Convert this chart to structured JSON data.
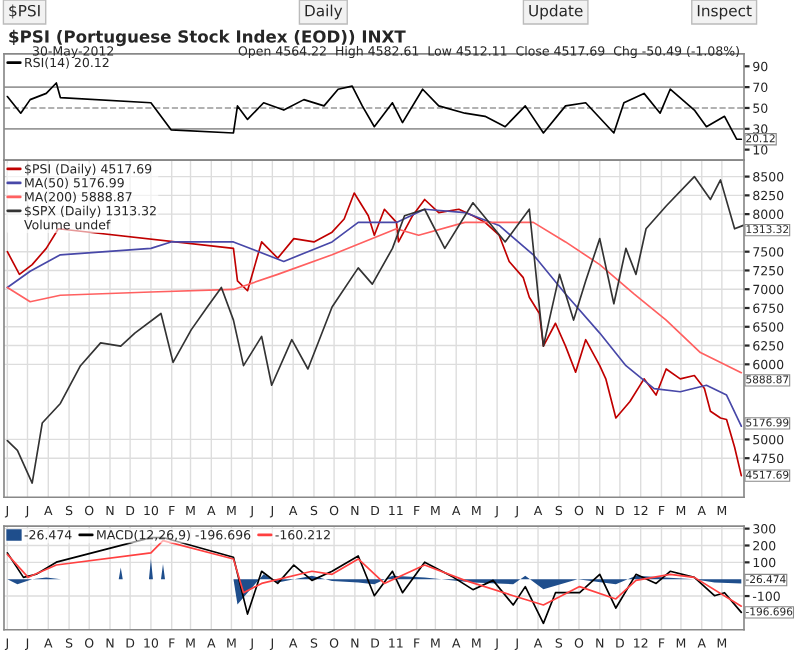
{
  "chart_data": [
    {
      "type": "line",
      "title": "$PSI (Portuguese Stock Index (EOD)) INXT",
      "subtitle": "30-May-2012",
      "annotations": [
        "$PSI",
        "Daily",
        "Update",
        "Inspect",
        "Open 4564.22  High 4582.61  Low 4512.11  Close 4517.69  Chg -50.49 (-1.08%)",
        {
          "text": "20.12",
          "x": "2012-05-30",
          "y": 20
        }
      ],
      "xlim": [
        "2009-05-27",
        "2012-06-03"
      ],
      "ylim": [
        0,
        102
      ],
      "yticks": [
        10,
        30,
        50,
        70,
        90
      ],
      "tick_labels": "y",
      "grid": "x",
      "legend": "top left",
      "ref_lines": [
        {
          "axis": "y",
          "value": 70,
          "color": "#999999",
          "line_style": "solid"
        },
        {
          "axis": "y",
          "value": 50,
          "color": "#999999",
          "line_style": "dashed"
        },
        {
          "axis": "y",
          "value": 30,
          "color": "#999999",
          "line_style": "solid"
        }
      ],
      "series": [
        {
          "name": "RSI(14) 20.12",
          "color": "#000000",
          "x": [
            "2009-06-01",
            "2009-06-21",
            "2009-07-05",
            "2009-07-29",
            "2009-08-13",
            "2009-08-19",
            "2010-01-01",
            "2010-01-31",
            "2010-05-04",
            "2010-05-10",
            "2010-05-25",
            "2010-06-18",
            "2010-07-18",
            "2010-08-17",
            "2010-09-16",
            "2010-10-07",
            "2010-10-28",
            "2010-11-12",
            "2010-11-30",
            "2010-12-27",
            "2011-01-11",
            "2011-02-10",
            "2011-03-06",
            "2011-04-14",
            "2011-05-14",
            "2011-06-13",
            "2011-07-13",
            "2011-08-09",
            "2011-09-11",
            "2011-10-11",
            "2011-11-22",
            "2011-12-07",
            "2012-01-06",
            "2012-01-30",
            "2012-02-14",
            "2012-03-21",
            "2012-04-08",
            "2012-05-05",
            "2012-05-23",
            "2012-05-30"
          ],
          "values": [
            61,
            45,
            58,
            64,
            74,
            60,
            55,
            29,
            26,
            52,
            39,
            55,
            48,
            58,
            52,
            68,
            71,
            52,
            32,
            55,
            36,
            68,
            52,
            45,
            42,
            32,
            52,
            26,
            52,
            55,
            26,
            55,
            64,
            45,
            68,
            48,
            32,
            42,
            20,
            20
          ]
        }
      ]
    },
    {
      "type": "line",
      "xlim": [
        "2009-05-27",
        "2012-06-03"
      ],
      "ylim": [
        4230,
        8720
      ],
      "yticks": [
        4750,
        5000,
        6000,
        6250,
        6500,
        6750,
        7000,
        7250,
        7500,
        8000,
        8250,
        8500
      ],
      "xticks": [
        {
          "value": "2009-06-01",
          "label": "J"
        },
        {
          "value": "2009-07-01",
          "label": "J"
        },
        {
          "value": "2009-08-01",
          "label": "A"
        },
        {
          "value": "2009-09-01",
          "label": "S"
        },
        {
          "value": "2009-10-01",
          "label": "O"
        },
        {
          "value": "2009-11-01",
          "label": "N"
        },
        {
          "value": "2009-12-01",
          "label": "D"
        },
        {
          "value": "2010-01-01",
          "label": "10"
        },
        {
          "value": "2010-02-01",
          "label": "F"
        },
        {
          "value": "2010-03-01",
          "label": "M"
        },
        {
          "value": "2010-04-01",
          "label": "A"
        },
        {
          "value": "2010-05-01",
          "label": "M"
        },
        {
          "value": "2010-06-01",
          "label": "J"
        },
        {
          "value": "2010-07-01",
          "label": "J"
        },
        {
          "value": "2010-08-01",
          "label": "A"
        },
        {
          "value": "2010-09-01",
          "label": "S"
        },
        {
          "value": "2010-10-01",
          "label": "O"
        },
        {
          "value": "2010-11-01",
          "label": "N"
        },
        {
          "value": "2010-12-01",
          "label": "D"
        },
        {
          "value": "2011-01-01",
          "label": "11"
        },
        {
          "value": "2011-02-01",
          "label": "F"
        },
        {
          "value": "2011-03-01",
          "label": "M"
        },
        {
          "value": "2011-04-01",
          "label": "A"
        },
        {
          "value": "2011-05-01",
          "label": "M"
        },
        {
          "value": "2011-06-01",
          "label": "J"
        },
        {
          "value": "2011-07-01",
          "label": "J"
        },
        {
          "value": "2011-08-01",
          "label": "A"
        },
        {
          "value": "2011-09-01",
          "label": "S"
        },
        {
          "value": "2011-10-01",
          "label": "O"
        },
        {
          "value": "2011-11-01",
          "label": "N"
        },
        {
          "value": "2011-12-01",
          "label": "D"
        },
        {
          "value": "2012-01-01",
          "label": "12"
        },
        {
          "value": "2012-02-01",
          "label": "F"
        },
        {
          "value": "2012-03-01",
          "label": "M"
        },
        {
          "value": "2012-04-01",
          "label": "A"
        },
        {
          "value": "2012-05-01",
          "label": "M"
        }
      ],
      "grid": true,
      "legend": "top left",
      "annotations": [
        "Volume undef",
        {
          "text": "1313.32",
          "x": "2012-05-30",
          "y": 7850
        },
        {
          "text": "5888.87",
          "x": "2012-05-30",
          "y": 5889
        },
        {
          "text": "5176.99",
          "x": "2012-05-30",
          "y": 5177
        },
        {
          "text": "4517.69",
          "x": "2012-05-30",
          "y": 4518
        }
      ],
      "series": [
        {
          "name": "$PSI (Daily) 4517.69",
          "color": "#c00000",
          "x": [
            "2009-06-01",
            "2009-06-19",
            "2009-07-08",
            "2009-07-29",
            "2009-08-16",
            "2010-05-04",
            "2010-05-10",
            "2010-05-25",
            "2010-06-15",
            "2010-07-09",
            "2010-08-02",
            "2010-09-01",
            "2010-09-28",
            "2010-10-16",
            "2010-10-31",
            "2010-11-21",
            "2010-11-30",
            "2010-12-15",
            "2011-01-02",
            "2011-01-05",
            "2011-01-26",
            "2011-02-13",
            "2011-03-06",
            "2011-04-05",
            "2011-04-26",
            "2011-05-14",
            "2011-06-04",
            "2011-06-19",
            "2011-07-10",
            "2011-07-19",
            "2011-08-03",
            "2011-08-09",
            "2011-08-27",
            "2011-09-11",
            "2011-09-26",
            "2011-10-11",
            "2011-11-01",
            "2011-11-10",
            "2011-11-25",
            "2011-12-16",
            "2012-01-06",
            "2012-01-24",
            "2012-02-08",
            "2012-02-29",
            "2012-03-21",
            "2012-04-05",
            "2012-04-14",
            "2012-04-29",
            "2012-05-08",
            "2012-05-20",
            "2012-05-30"
          ],
          "values": [
            7500,
            7198,
            7328,
            7544,
            7805,
            7544,
            7110,
            6980,
            7630,
            7414,
            7674,
            7630,
            7760,
            7935,
            8281,
            7979,
            7719,
            8065,
            7890,
            7630,
            7979,
            8195,
            8021,
            8065,
            7979,
            7890,
            7719,
            7370,
            7154,
            6893,
            6677,
            6242,
            6547,
            6242,
            5896,
            6328,
            5982,
            5807,
            5286,
            5505,
            5807,
            5591,
            5938,
            5807,
            5851,
            5677,
            5375,
            5286,
            5265,
            4896,
            4518
          ]
        },
        {
          "name": "MA(50) 5176.99",
          "color": "#4848a8",
          "x": [
            "2009-06-01",
            "2009-07-05",
            "2009-08-19",
            "2010-01-01",
            "2010-01-31",
            "2010-05-04",
            "2010-07-18",
            "2010-09-28",
            "2010-11-06",
            "2011-01-02",
            "2011-02-13",
            "2011-04-14",
            "2011-06-04",
            "2011-07-25",
            "2011-09-11",
            "2011-11-01",
            "2011-12-10",
            "2012-01-21",
            "2012-02-29",
            "2012-04-08",
            "2012-05-08",
            "2012-05-30"
          ],
          "values": [
            7023,
            7240,
            7458,
            7544,
            7630,
            7630,
            7370,
            7630,
            7890,
            7890,
            8065,
            8021,
            7849,
            7458,
            6937,
            6416,
            5982,
            5677,
            5635,
            5721,
            5591,
            5177
          ]
        },
        {
          "name": "MA(200) 5888.87",
          "color": "#ff6060",
          "x": [
            "2009-06-01",
            "2009-07-05",
            "2009-08-19",
            "2010-01-01",
            "2010-05-04",
            "2010-07-09",
            "2010-09-28",
            "2011-01-02",
            "2011-02-04",
            "2011-04-14",
            "2011-07-25",
            "2011-09-11",
            "2011-11-01",
            "2011-12-22",
            "2012-02-08",
            "2012-03-30",
            "2012-05-30"
          ],
          "values": [
            7023,
            6833,
            6920,
            6963,
            6997,
            7198,
            7458,
            7805,
            7719,
            7890,
            7890,
            7630,
            7328,
            6937,
            6589,
            6156,
            5889
          ]
        },
        {
          "name": "$SPX (Daily) 1313.32",
          "color": "#333333",
          "x": [
            "2009-06-01",
            "2009-06-16",
            "2009-07-08",
            "2009-07-23",
            "2009-08-19",
            "2009-09-18",
            "2009-10-18",
            "2009-11-17",
            "2009-12-08",
            "2010-01-16",
            "2010-02-03",
            "2010-03-02",
            "2010-03-26",
            "2010-04-16",
            "2010-05-04",
            "2010-05-19",
            "2010-06-15",
            "2010-06-30",
            "2010-07-30",
            "2010-08-23",
            "2010-09-28",
            "2010-11-06",
            "2010-11-27",
            "2010-12-27",
            "2011-01-14",
            "2011-02-13",
            "2011-03-15",
            "2011-04-26",
            "2011-06-13",
            "2011-07-19",
            "2011-08-09",
            "2011-09-02",
            "2011-09-23",
            "2011-10-11",
            "2011-11-01",
            "2011-11-22",
            "2011-12-10",
            "2011-12-25",
            "2012-01-09",
            "2012-02-08",
            "2012-03-21",
            "2012-04-14",
            "2012-04-29",
            "2012-05-20",
            "2012-06-02"
          ],
          "values": [
            4984,
            4854,
            4419,
            5218,
            5479,
            5982,
            6286,
            6242,
            6416,
            6677,
            6026,
            6459,
            6763,
            7023,
            6589,
            5982,
            6372,
            5721,
            6328,
            5938,
            6763,
            7284,
            7068,
            7544,
            7979,
            8065,
            7544,
            8151,
            7630,
            8065,
            6242,
            7198,
            6589,
            7110,
            7674,
            6807,
            7544,
            7198,
            7805,
            8108,
            8500,
            8195,
            8456,
            7805,
            7850
          ]
        }
      ]
    },
    {
      "type": "line",
      "xlim": [
        "2009-05-27",
        "2012-06-03"
      ],
      "ylim": [
        -300,
        315
      ],
      "yticks": [
        -100,
        100,
        200,
        300
      ],
      "xticks": [
        {
          "value": "2009-06-01",
          "label": "J"
        },
        {
          "value": "2009-07-01",
          "label": "J"
        },
        {
          "value": "2009-08-01",
          "label": "A"
        },
        {
          "value": "2009-09-01",
          "label": "S"
        },
        {
          "value": "2009-10-01",
          "label": "O"
        },
        {
          "value": "2009-11-01",
          "label": "N"
        },
        {
          "value": "2009-12-01",
          "label": "D"
        },
        {
          "value": "2010-01-01",
          "label": "10"
        },
        {
          "value": "2010-02-01",
          "label": "F"
        },
        {
          "value": "2010-03-01",
          "label": "M"
        },
        {
          "value": "2010-04-01",
          "label": "A"
        },
        {
          "value": "2010-05-01",
          "label": "M"
        },
        {
          "value": "2010-06-01",
          "label": "J"
        },
        {
          "value": "2010-07-01",
          "label": "J"
        },
        {
          "value": "2010-08-01",
          "label": "A"
        },
        {
          "value": "2010-09-01",
          "label": "S"
        },
        {
          "value": "2010-10-01",
          "label": "O"
        },
        {
          "value": "2010-11-01",
          "label": "N"
        },
        {
          "value": "2010-12-01",
          "label": "D"
        },
        {
          "value": "2011-01-01",
          "label": "11"
        },
        {
          "value": "2011-02-01",
          "label": "F"
        },
        {
          "value": "2011-03-01",
          "label": "M"
        },
        {
          "value": "2011-04-01",
          "label": "A"
        },
        {
          "value": "2011-05-01",
          "label": "M"
        },
        {
          "value": "2011-06-01",
          "label": "J"
        },
        {
          "value": "2011-07-01",
          "label": "J"
        },
        {
          "value": "2011-08-01",
          "label": "A"
        },
        {
          "value": "2011-09-01",
          "label": "S"
        },
        {
          "value": "2011-10-01",
          "label": "O"
        },
        {
          "value": "2011-11-01",
          "label": "N"
        },
        {
          "value": "2011-12-01",
          "label": "D"
        },
        {
          "value": "2012-01-01",
          "label": "12"
        },
        {
          "value": "2012-02-01",
          "label": "F"
        },
        {
          "value": "2012-03-01",
          "label": "M"
        },
        {
          "value": "2012-04-01",
          "label": "A"
        },
        {
          "value": "2012-05-01",
          "label": "M"
        }
      ],
      "grid": true,
      "legend": "top left",
      "annotations": [
        {
          "text": "-26.474",
          "x": "2012-05-30",
          "y": -26
        },
        {
          "text": "-196.696",
          "x": "2012-05-30",
          "y": -197
        }
      ],
      "series": [
        {
          "name": "-26.474",
          "type": "area",
          "color": "#1f4e8c",
          "x": [
            "2009-06-01",
            "2009-06-16",
            "2009-07-08",
            "2009-07-29",
            "2009-08-20",
            "2009-11-14",
            "2009-11-17",
            "2009-11-20",
            "2009-12-29",
            "2010-01-01",
            "2010-01-04",
            "2010-01-16",
            "2010-01-19",
            "2010-01-22",
            "2010-05-04",
            "2010-05-10",
            "2010-05-25",
            "2010-06-18",
            "2010-07-09",
            "2010-08-29",
            "2010-09-28",
            "2010-11-06",
            "2010-11-30",
            "2010-12-27",
            "2011-02-13",
            "2011-04-26",
            "2011-06-25",
            "2011-07-13",
            "2011-08-09",
            "2011-09-29",
            "2011-11-25",
            "2011-12-25",
            "2012-03-21",
            "2012-04-20",
            "2012-05-30"
          ],
          "values": [
            0,
            -30,
            0,
            10,
            0,
            0,
            70,
            0,
            0,
            120,
            0,
            0,
            90,
            0,
            0,
            -150,
            -80,
            30,
            -20,
            20,
            -10,
            -20,
            -30,
            20,
            10,
            -20,
            -30,
            20,
            -60,
            0,
            -30,
            20,
            0,
            -20,
            -26
          ]
        },
        {
          "name": "MACD(12,26,9) -196.696",
          "color": "#000000",
          "x": [
            "2009-06-01",
            "2009-06-25",
            "2009-07-14",
            "2009-08-13",
            "2010-01-01",
            "2010-01-19",
            "2010-05-04",
            "2010-05-25",
            "2010-06-15",
            "2010-07-09",
            "2010-08-02",
            "2010-08-29",
            "2010-09-28",
            "2010-11-06",
            "2010-11-30",
            "2010-12-27",
            "2011-01-11",
            "2011-02-13",
            "2011-03-28",
            "2011-04-26",
            "2011-05-26",
            "2011-06-25",
            "2011-07-13",
            "2011-08-09",
            "2011-08-27",
            "2011-10-02",
            "2011-11-01",
            "2011-11-25",
            "2011-12-25",
            "2012-01-24",
            "2012-02-14",
            "2012-03-21",
            "2012-04-20",
            "2012-05-05",
            "2012-05-30"
          ],
          "values": [
            156,
            11,
            29,
            101,
            247,
            247,
            130,
            -207,
            47,
            -25,
            84,
            -7,
            47,
            138,
            -98,
            47,
            -80,
            101,
            11,
            -62,
            -7,
            -153,
            -44,
            -262,
            -80,
            -80,
            29,
            -171,
            29,
            -25,
            47,
            11,
            -98,
            -80,
            -197
          ]
        },
        {
          "name": "-160.212",
          "color": "#ff4040",
          "x": [
            "2009-06-01",
            "2009-07-02",
            "2009-08-13",
            "2010-01-01",
            "2010-01-19",
            "2010-05-04",
            "2010-05-19",
            "2010-06-15",
            "2010-08-29",
            "2010-09-28",
            "2010-11-06",
            "2010-12-15",
            "2011-02-13",
            "2011-04-14",
            "2011-06-25",
            "2011-08-09",
            "2011-10-02",
            "2011-11-25",
            "2011-12-25",
            "2012-02-14",
            "2012-03-21",
            "2012-05-30"
          ],
          "values": [
            147,
            11,
            84,
            156,
            229,
            120,
            -80,
            -25,
            47,
            29,
            120,
            -25,
            84,
            -7,
            -98,
            -153,
            -44,
            -117,
            -7,
            29,
            11,
            -160
          ]
        }
      ]
    }
  ]
}
